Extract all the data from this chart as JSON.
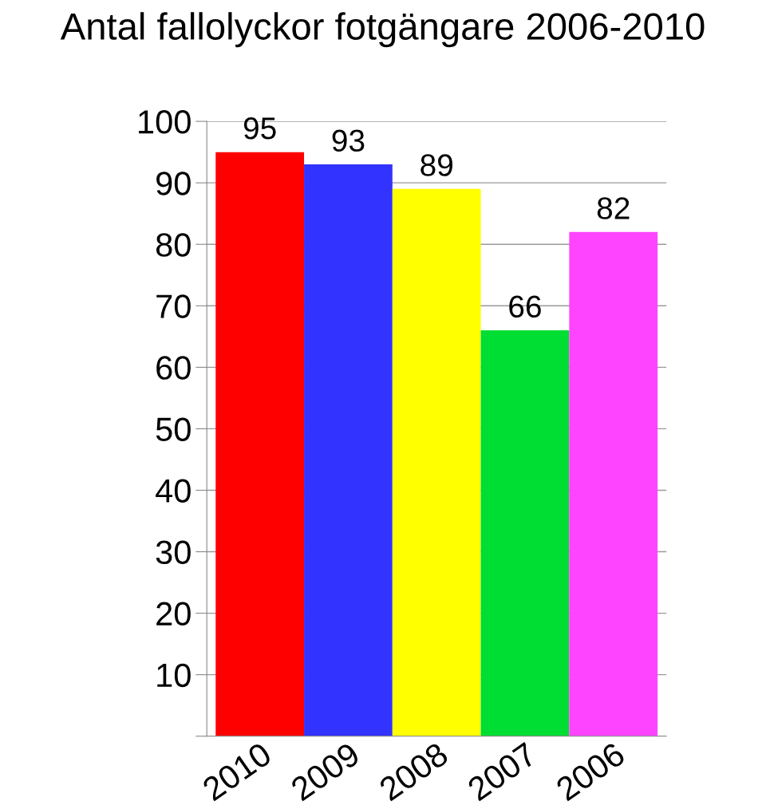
{
  "chart_data": {
    "type": "bar",
    "title": "Antal fallolyckor fotgängare 2006-2010",
    "categories": [
      "2010",
      "2009",
      "2008",
      "2007",
      "2006"
    ],
    "values": [
      95,
      93,
      89,
      66,
      82
    ],
    "colors": [
      "#ff0000",
      "#3333ff",
      "#ffff00",
      "#00dd33",
      "#ff44ff"
    ],
    "ylim": [
      0,
      100
    ],
    "yticks": [
      {
        "value": 0,
        "label": null
      },
      10,
      20,
      30,
      40,
      50,
      60,
      70,
      80,
      90,
      100
    ],
    "grid": "y",
    "data_labels": true
  }
}
